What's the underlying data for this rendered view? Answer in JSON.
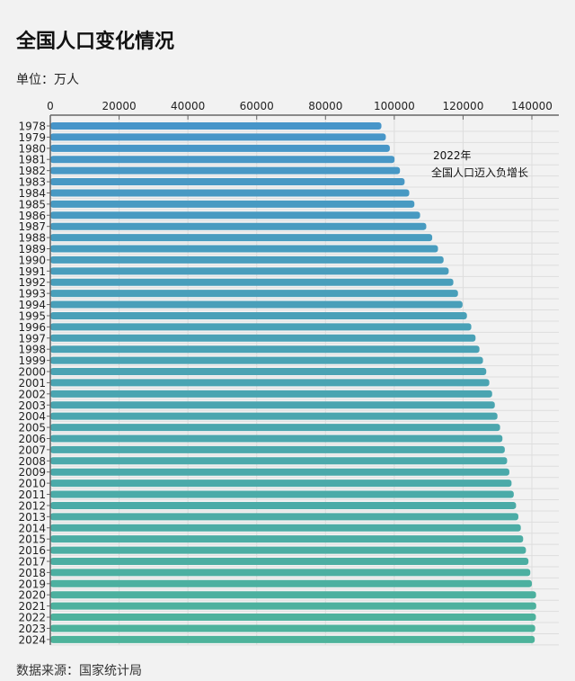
{
  "title": "全国人口变化情况",
  "unit": "单位：万人",
  "source": "数据来源：国家统计局",
  "chart_data": {
    "type": "bar",
    "orientation": "horizontal",
    "categories": [
      "1978",
      "1979",
      "1980",
      "1981",
      "1982",
      "1983",
      "1984",
      "1985",
      "1986",
      "1987",
      "1988",
      "1989",
      "1990",
      "1991",
      "1992",
      "1993",
      "1994",
      "1995",
      "1996",
      "1997",
      "1998",
      "1999",
      "2000",
      "2001",
      "2002",
      "2003",
      "2004",
      "2005",
      "2006",
      "2007",
      "2008",
      "2009",
      "2010",
      "2011",
      "2012",
      "2013",
      "2014",
      "2015",
      "2016",
      "2017",
      "2018",
      "2019",
      "2020",
      "2021",
      "2022",
      "2023",
      "2024"
    ],
    "values": [
      96259,
      97542,
      98705,
      100072,
      101654,
      103008,
      104357,
      105851,
      107507,
      109300,
      111026,
      112704,
      114333,
      115823,
      117171,
      118517,
      119850,
      121121,
      122389,
      123626,
      124761,
      125786,
      126743,
      127627,
      128453,
      129227,
      129988,
      130756,
      131448,
      132129,
      132802,
      133450,
      134091,
      134735,
      135404,
      136072,
      136782,
      137462,
      138271,
      139008,
      139538,
      140005,
      141212,
      141260,
      141175,
      140967,
      140828
    ],
    "xlim": [
      0,
      148000
    ],
    "xticks": [
      "0",
      "20000",
      "40000",
      "60000",
      "80000",
      "100000",
      "120000",
      "140000"
    ],
    "xaxis_position": "top",
    "grid": true,
    "colors": {
      "start": "#4795c9",
      "end": "#4db39b"
    },
    "annotation": {
      "line1": "2022年",
      "line2": "全国人口迈入负增长"
    }
  }
}
